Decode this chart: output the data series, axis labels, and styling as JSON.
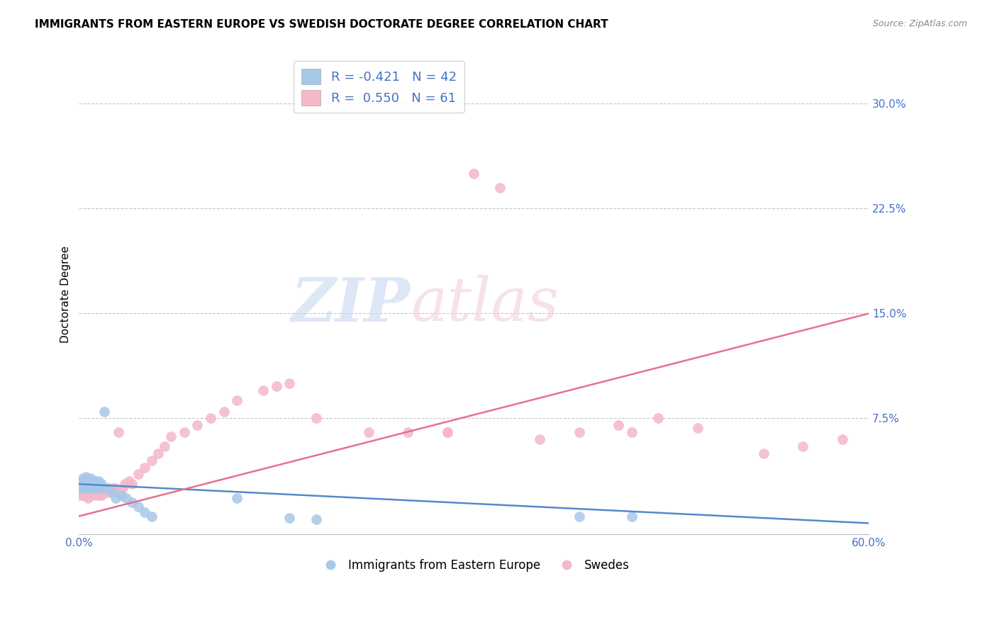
{
  "title": "IMMIGRANTS FROM EASTERN EUROPE VS SWEDISH DOCTORATE DEGREE CORRELATION CHART",
  "source": "Source: ZipAtlas.com",
  "ylabel": "Doctorate Degree",
  "xlim": [
    0.0,
    0.6
  ],
  "ylim": [
    -0.008,
    0.335
  ],
  "yticks": [
    0.0,
    0.075,
    0.15,
    0.225,
    0.3
  ],
  "ytick_labels": [
    "",
    "7.5%",
    "15.0%",
    "22.5%",
    "30.0%"
  ],
  "xticks": [
    0.0,
    0.6
  ],
  "xtick_labels": [
    "0.0%",
    "60.0%"
  ],
  "blue_color": "#a8c8e8",
  "pink_color": "#f4b8c8",
  "trend_blue_color": "#5588cc",
  "trend_pink_color": "#e87090",
  "blue_scatter": {
    "x": [
      0.001,
      0.002,
      0.002,
      0.003,
      0.003,
      0.004,
      0.004,
      0.005,
      0.005,
      0.006,
      0.006,
      0.007,
      0.007,
      0.008,
      0.008,
      0.009,
      0.009,
      0.01,
      0.01,
      0.011,
      0.012,
      0.012,
      0.013,
      0.014,
      0.015,
      0.016,
      0.017,
      0.019,
      0.022,
      0.025,
      0.028,
      0.032,
      0.036,
      0.04,
      0.045,
      0.05,
      0.055,
      0.12,
      0.16,
      0.18,
      0.38,
      0.42
    ],
    "y": [
      0.025,
      0.03,
      0.028,
      0.032,
      0.025,
      0.028,
      0.03,
      0.027,
      0.033,
      0.025,
      0.03,
      0.028,
      0.025,
      0.03,
      0.028,
      0.025,
      0.032,
      0.028,
      0.025,
      0.028,
      0.025,
      0.03,
      0.025,
      0.025,
      0.03,
      0.025,
      0.028,
      0.08,
      0.025,
      0.022,
      0.018,
      0.02,
      0.018,
      0.015,
      0.012,
      0.008,
      0.005,
      0.018,
      0.004,
      0.003,
      0.005,
      0.005
    ]
  },
  "pink_scatter": {
    "x": [
      0.001,
      0.002,
      0.003,
      0.003,
      0.004,
      0.005,
      0.005,
      0.006,
      0.007,
      0.008,
      0.009,
      0.01,
      0.011,
      0.012,
      0.013,
      0.014,
      0.015,
      0.016,
      0.017,
      0.018,
      0.02,
      0.022,
      0.024,
      0.026,
      0.028,
      0.03,
      0.033,
      0.035,
      0.038,
      0.04,
      0.045,
      0.05,
      0.055,
      0.06,
      0.065,
      0.07,
      0.08,
      0.09,
      0.1,
      0.11,
      0.12,
      0.14,
      0.15,
      0.16,
      0.18,
      0.22,
      0.25,
      0.28,
      0.3,
      0.32,
      0.35,
      0.38,
      0.41,
      0.44,
      0.47,
      0.52,
      0.55,
      0.58,
      0.03,
      0.28,
      0.42
    ],
    "y": [
      0.02,
      0.022,
      0.02,
      0.025,
      0.02,
      0.022,
      0.025,
      0.02,
      0.018,
      0.022,
      0.02,
      0.022,
      0.025,
      0.02,
      0.022,
      0.025,
      0.02,
      0.022,
      0.02,
      0.022,
      0.025,
      0.022,
      0.025,
      0.025,
      0.025,
      0.022,
      0.025,
      0.028,
      0.03,
      0.028,
      0.035,
      0.04,
      0.045,
      0.05,
      0.055,
      0.062,
      0.065,
      0.07,
      0.075,
      0.08,
      0.088,
      0.095,
      0.098,
      0.1,
      0.075,
      0.065,
      0.065,
      0.065,
      0.25,
      0.24,
      0.06,
      0.065,
      0.07,
      0.075,
      0.068,
      0.05,
      0.055,
      0.06,
      0.065,
      0.065,
      0.065
    ]
  },
  "blue_trend": {
    "x_start": 0.0,
    "x_end": 0.6,
    "y_start": 0.028,
    "y_end": 0.0
  },
  "pink_trend": {
    "x_start": 0.0,
    "x_end": 0.6,
    "y_start": 0.005,
    "y_end": 0.15
  },
  "watermark_zip": "ZIP",
  "watermark_atlas": "atlas",
  "legend_label1": "Immigrants from Eastern Europe",
  "legend_label2": "Swedes",
  "grid_color": "#c8c8c8",
  "title_fontsize": 11,
  "tick_label_color": "#4472c4",
  "legend_box_color": "#e8e8f0"
}
